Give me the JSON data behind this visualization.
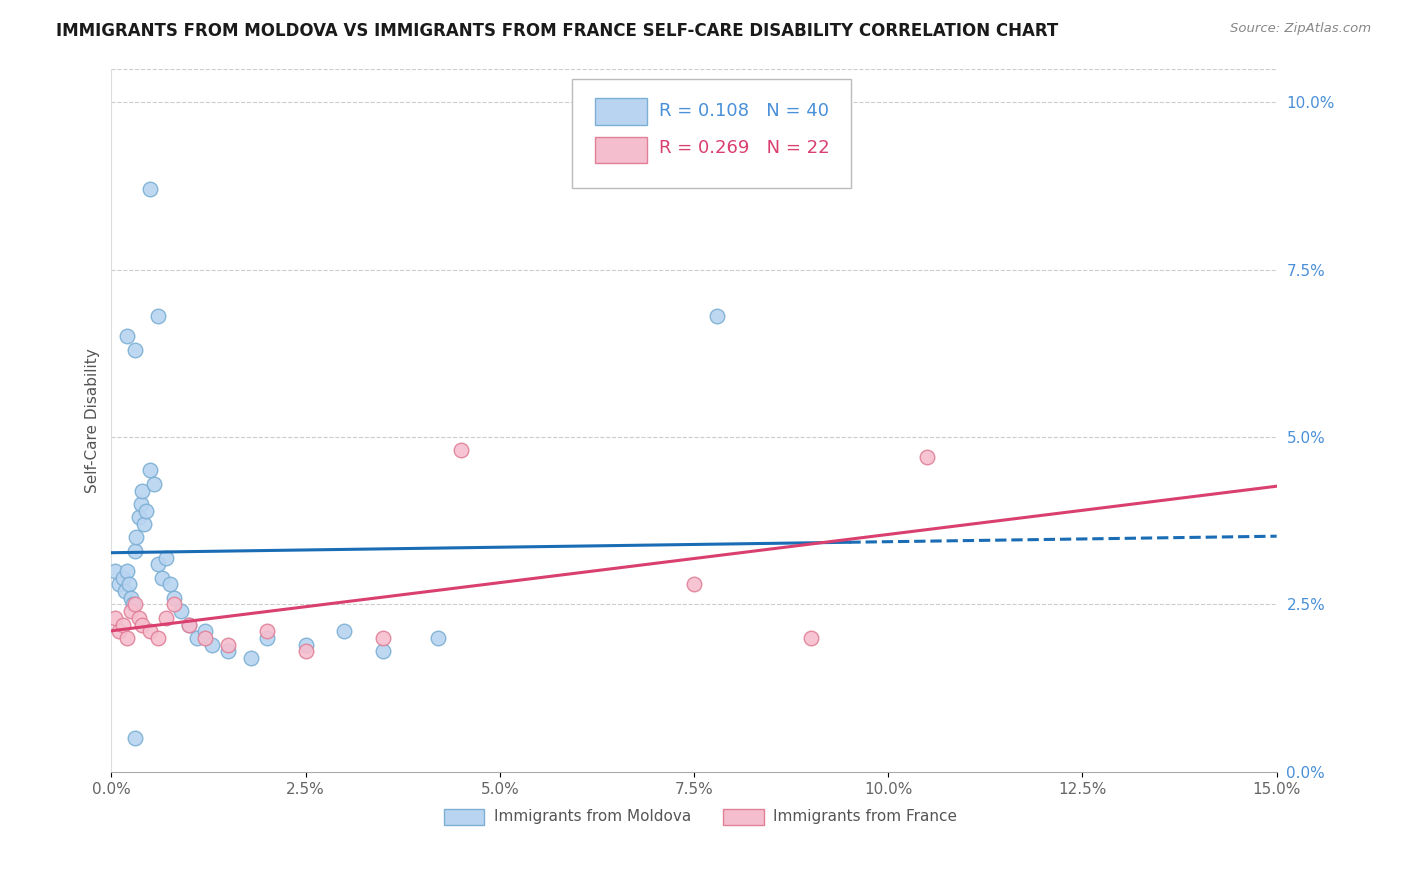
{
  "title": "IMMIGRANTS FROM MOLDOVA VS IMMIGRANTS FROM FRANCE SELF-CARE DISABILITY CORRELATION CHART",
  "source": "Source: ZipAtlas.com",
  "ylabel": "Self-Care Disability",
  "xlim": [
    0.0,
    15.0
  ],
  "ylim": [
    0.0,
    10.5
  ],
  "moldova_x": [
    0.05,
    0.1,
    0.15,
    0.18,
    0.2,
    0.22,
    0.25,
    0.28,
    0.3,
    0.32,
    0.35,
    0.38,
    0.4,
    0.42,
    0.45,
    0.5,
    0.55,
    0.6,
    0.65,
    0.7,
    0.75,
    0.8,
    0.9,
    1.0,
    1.1,
    1.2,
    1.3,
    1.5,
    1.8,
    2.0,
    2.5,
    3.0,
    3.5,
    4.2,
    0.2,
    0.3,
    0.5,
    0.6,
    7.8,
    0.3
  ],
  "moldova_y": [
    3.0,
    2.8,
    2.9,
    2.7,
    3.0,
    2.8,
    2.6,
    2.5,
    3.3,
    3.5,
    3.8,
    4.0,
    4.2,
    3.7,
    3.9,
    4.5,
    4.3,
    3.1,
    2.9,
    3.2,
    2.8,
    2.6,
    2.4,
    2.2,
    2.0,
    2.1,
    1.9,
    1.8,
    1.7,
    2.0,
    1.9,
    2.1,
    1.8,
    2.0,
    6.5,
    6.3,
    8.7,
    6.8,
    6.8,
    0.5
  ],
  "france_x": [
    0.05,
    0.1,
    0.15,
    0.2,
    0.25,
    0.3,
    0.35,
    0.4,
    0.5,
    0.6,
    0.7,
    0.8,
    1.0,
    1.2,
    1.5,
    2.0,
    2.5,
    3.5,
    4.5,
    7.5,
    9.0,
    10.5
  ],
  "france_y": [
    2.3,
    2.1,
    2.2,
    2.0,
    2.4,
    2.5,
    2.3,
    2.2,
    2.1,
    2.0,
    2.3,
    2.5,
    2.2,
    2.0,
    1.9,
    2.1,
    1.8,
    2.0,
    4.8,
    2.8,
    2.0,
    4.7
  ],
  "moldova_color": "#b8d4f0",
  "moldova_edge_color": "#7bafd4",
  "france_color": "#f5bece",
  "france_edge_color": "#e08098",
  "trend_moldova_color": "#1a6db5",
  "trend_france_color": "#d94070",
  "legend_r_moldova": "R = 0.108",
  "legend_n_moldova": "N = 40",
  "legend_r_france": "R = 0.269",
  "legend_n_france": "N = 22",
  "moldova_trend_solid_end": 9.5,
  "marker_size": 110,
  "background_color": "#ffffff",
  "grid_color": "#cccccc",
  "title_fontsize": 12,
  "tick_fontsize": 11,
  "right_tick_color": "#4a90d9"
}
